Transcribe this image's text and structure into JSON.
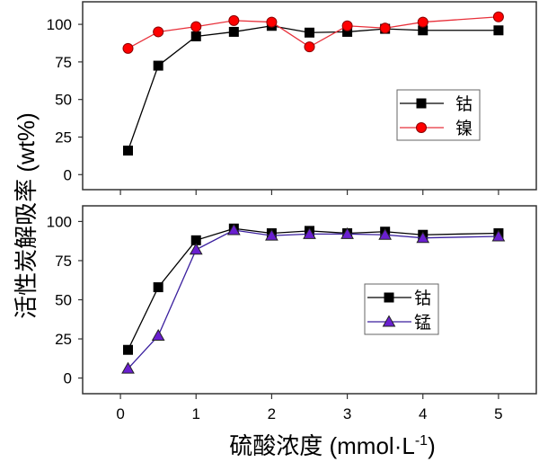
{
  "chart_data": [
    {
      "type": "line",
      "ylabel": "活性炭解吸率 (wt%)",
      "xlabel": "",
      "xlim": [
        -0.5,
        5.5
      ],
      "ylim": [
        -10,
        115
      ],
      "xticks": [
        0,
        1,
        2,
        3,
        4,
        5
      ],
      "xtick_labels_shown": false,
      "yticks": [
        0,
        25,
        50,
        75,
        100
      ],
      "ytick_labels": [
        "0",
        "25",
        "50",
        "75",
        "100"
      ],
      "grid": false,
      "legend_placement": "center-right",
      "x": [
        0.1,
        0.5,
        1,
        1.5,
        2,
        2.5,
        3,
        3.5,
        4,
        5
      ],
      "series": [
        {
          "name": "钴",
          "marker": "square",
          "color": "#000000",
          "marker_fill": "#000000",
          "values": [
            16,
            72.5,
            92,
            95,
            99,
            94.5,
            95,
            97,
            96,
            96
          ]
        },
        {
          "name": "镍",
          "marker": "circle",
          "color": "#e8303a",
          "marker_fill": "#ff0000",
          "values": [
            84,
            95,
            98.5,
            102.5,
            101.5,
            85,
            99,
            97.5,
            101.5,
            105
          ]
        }
      ]
    },
    {
      "type": "line",
      "xlabel": "硫酸浓度 (mmol·L",
      "xlabel_sup": "-1",
      "xlabel_end": ")",
      "xlim": [
        -0.5,
        5.5
      ],
      "ylim": [
        -10,
        110
      ],
      "xticks": [
        0,
        1,
        2,
        3,
        4,
        5
      ],
      "xtick_labels": [
        "0",
        "1",
        "2",
        "3",
        "4",
        "5"
      ],
      "yticks": [
        0,
        25,
        50,
        75,
        100
      ],
      "ytick_labels": [
        "0",
        "25",
        "50",
        "75",
        "100"
      ],
      "grid": false,
      "legend_placement": "center-right",
      "x": [
        0.1,
        0.5,
        1,
        1.5,
        2,
        2.5,
        3,
        3.5,
        4,
        5
      ],
      "series": [
        {
          "name": "钴",
          "marker": "square",
          "color": "#000000",
          "marker_fill": "#000000",
          "values": [
            18,
            58,
            88,
            95.5,
            92.5,
            94,
            92.5,
            93.5,
            91.5,
            92.5
          ]
        },
        {
          "name": "锰",
          "marker": "triangle",
          "color": "#3a1f9e",
          "marker_fill": "#6a1fd0",
          "values": [
            6,
            27,
            82,
            94.5,
            91,
            92,
            92,
            91.5,
            89.5,
            90.5
          ]
        }
      ]
    }
  ]
}
